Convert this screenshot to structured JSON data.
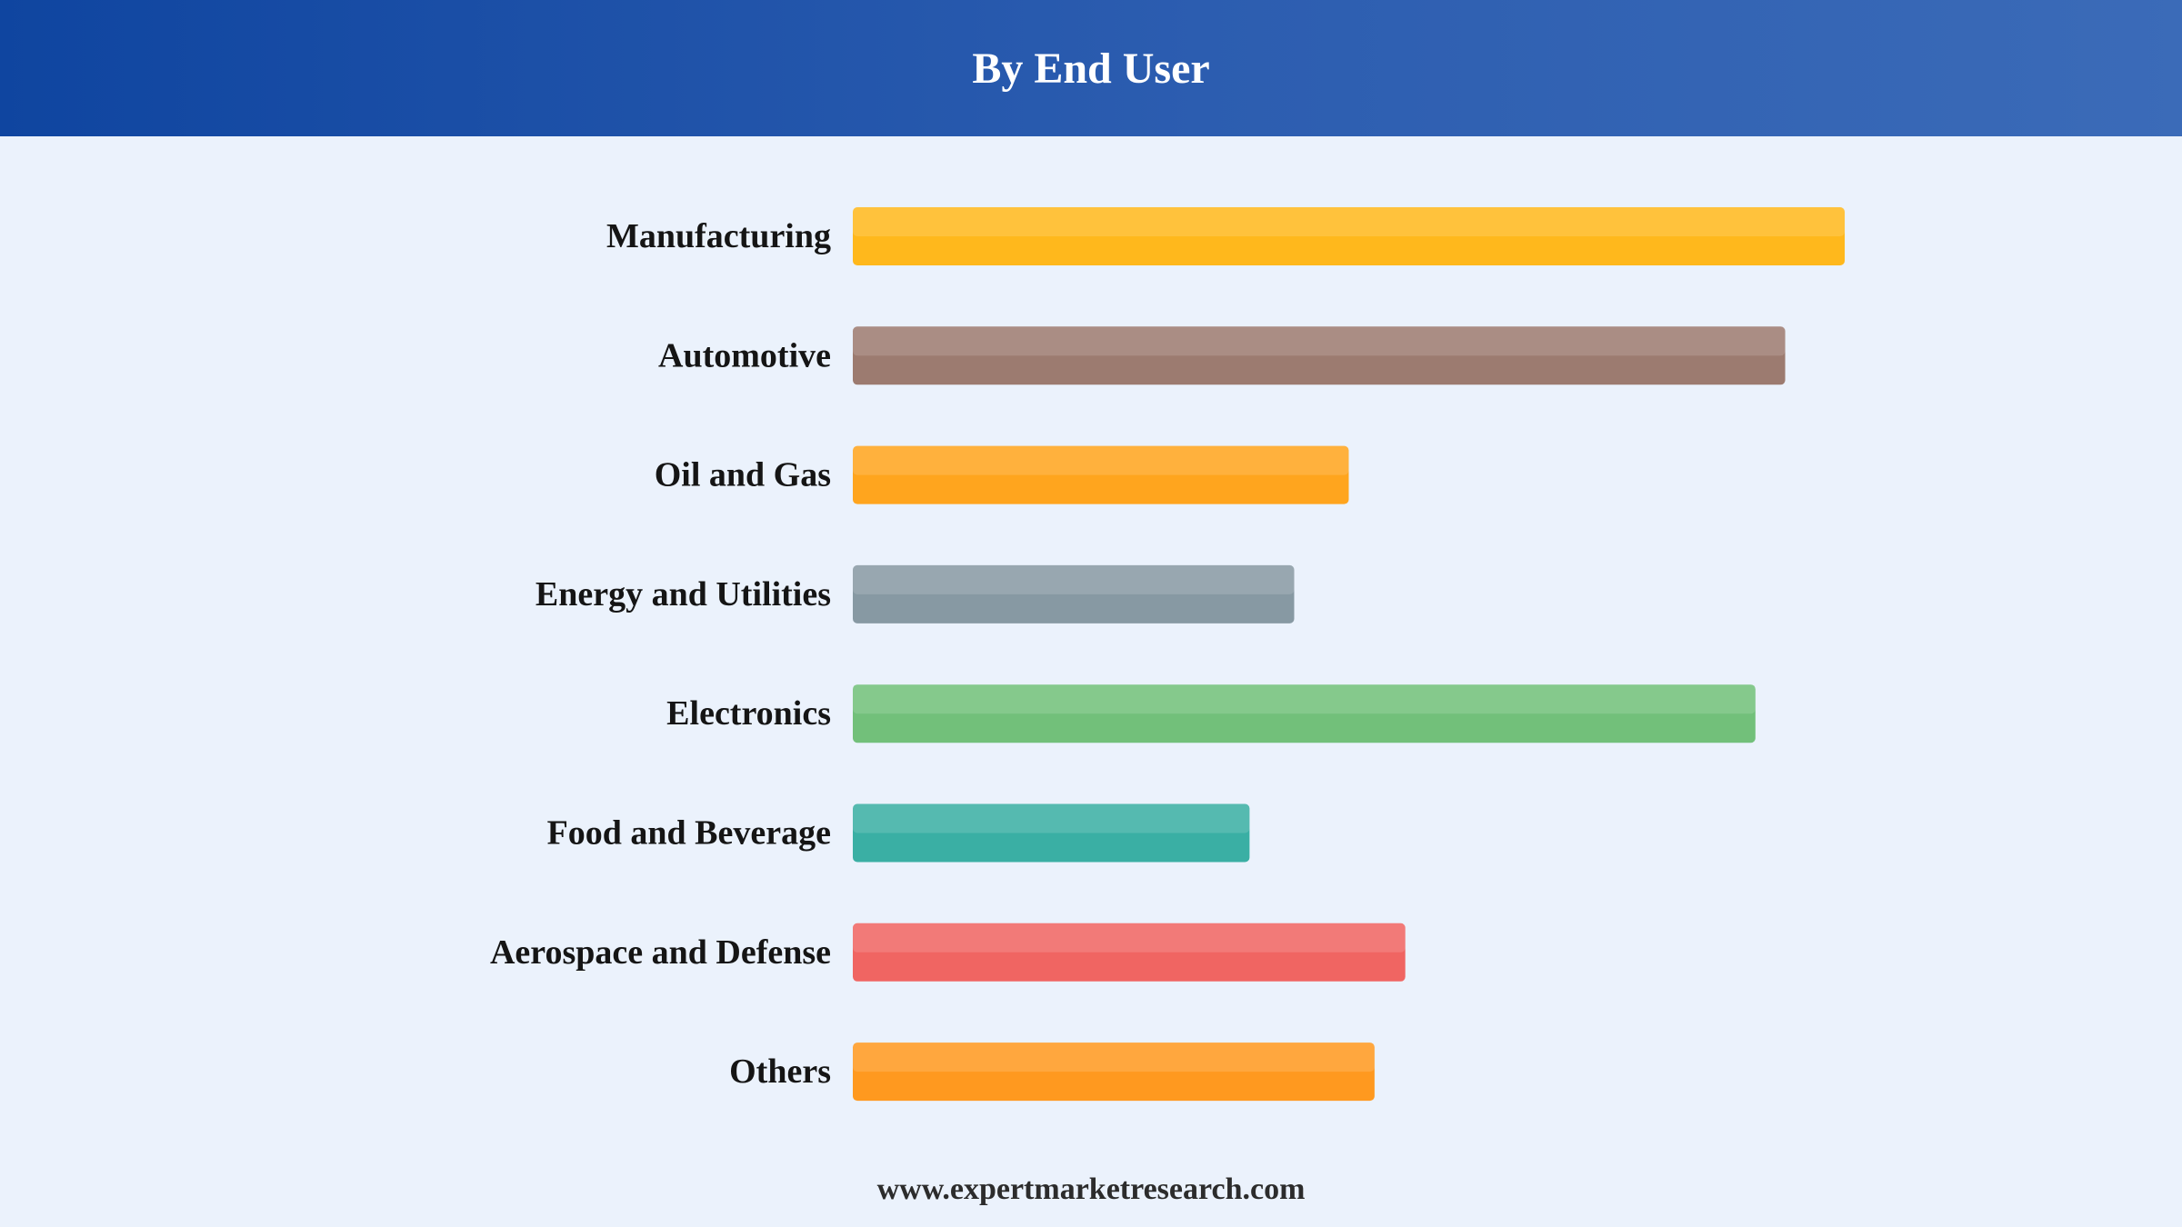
{
  "header": {
    "title": "By End User"
  },
  "footer": {
    "website": "www.expertmarketresearch.com"
  },
  "chart_data": {
    "type": "bar",
    "orientation": "horizontal",
    "title": "By End User",
    "xlabel": "",
    "ylabel": "",
    "grid": false,
    "legend": "none",
    "xlim": [
      0,
      100
    ],
    "categories": [
      "Manufacturing",
      "Automotive",
      "Oil and Gas",
      "Energy and Utilities",
      "Electronics",
      "Food and Beverage",
      "Aerospace and Defense",
      "Others"
    ],
    "values": [
      100,
      94,
      50,
      44.5,
      91,
      40,
      55.7,
      52.6
    ],
    "colors": [
      "#ffb81c",
      "#9c7b70",
      "#ffa51e",
      "#8799a3",
      "#72c07a",
      "#3aafa4",
      "#f06562",
      "#ff991f"
    ]
  }
}
